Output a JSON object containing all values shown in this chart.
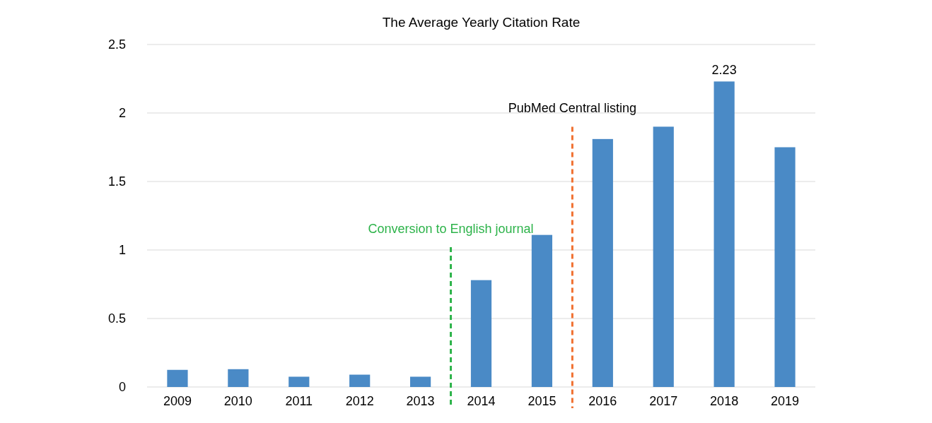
{
  "chart_data": {
    "type": "bar",
    "title": "The Average Yearly Citation Rate",
    "x": [
      2009,
      2010,
      2011,
      2012,
      2013,
      2014,
      2015,
      2016,
      2017,
      2018,
      2019
    ],
    "values": [
      0.125,
      0.13,
      0.075,
      0.09,
      0.075,
      0.78,
      1.11,
      1.81,
      1.9,
      2.23,
      1.75
    ],
    "value_labels": [
      null,
      null,
      null,
      null,
      null,
      null,
      null,
      null,
      null,
      "2.23",
      null
    ],
    "color": "#4a8ac6",
    "xlim": [
      2008.5,
      2019.5
    ],
    "xticks": [
      2009,
      2010,
      2011,
      2012,
      2013,
      2014,
      2015,
      2016,
      2017,
      2018,
      2019
    ],
    "ylim": [
      0,
      2.5
    ],
    "yticks": [
      0,
      0.5,
      1,
      1.5,
      2,
      2.5
    ],
    "grid": "y",
    "ref_lines": [
      {
        "axis": "x",
        "value": 2013.5,
        "label": "Conversion to English journal",
        "color": "#2db34a",
        "line_style": "dashed"
      },
      {
        "axis": "x",
        "value": 2015.5,
        "label": "PubMed Central listing",
        "color": "#f07030",
        "line_style": "dashed"
      }
    ]
  }
}
